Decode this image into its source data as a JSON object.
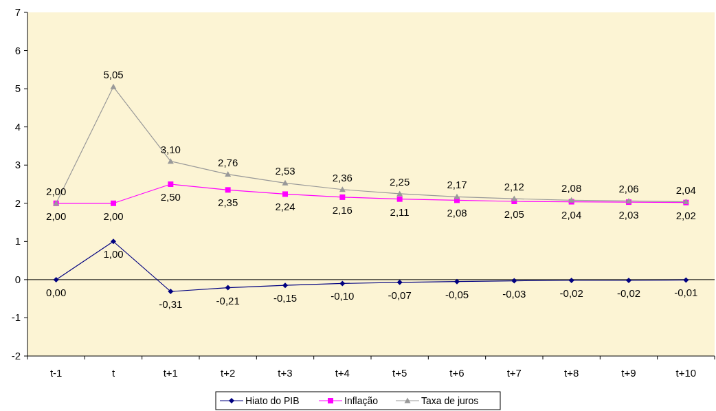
{
  "chart_data": {
    "type": "line",
    "categories": [
      "t-1",
      "t",
      "t+1",
      "t+2",
      "t+3",
      "t+4",
      "t+5",
      "t+6",
      "t+7",
      "t+8",
      "t+9",
      "t+10"
    ],
    "series": [
      {
        "name": "Hiato do PIB",
        "color": "#000080",
        "marker": "diamond",
        "values": [
          0,
          1,
          -0.31,
          -0.21,
          -0.15,
          -0.1,
          -0.07,
          -0.05,
          -0.03,
          -0.02,
          -0.02,
          -0.01
        ],
        "value_labels": [
          "0,00",
          "1,00",
          "-0,31",
          "-0,21",
          "-0,15",
          "-0,10",
          "-0,07",
          "-0,05",
          "-0,03",
          "-0,02",
          "-0,02",
          "-0,01"
        ]
      },
      {
        "name": "Inflação",
        "color": "#ff00ff",
        "marker": "square",
        "values": [
          2,
          2,
          2.5,
          2.35,
          2.24,
          2.16,
          2.11,
          2.08,
          2.05,
          2.04,
          2.03,
          2.02
        ],
        "value_labels": [
          "2,00",
          "2,00",
          "2,50",
          "2,35",
          "2,24",
          "2,16",
          "2,11",
          "2,08",
          "2,05",
          "2,04",
          "2,03",
          "2,02"
        ]
      },
      {
        "name": "Taxa de juros",
        "color": "#999999",
        "marker": "triangle",
        "values": [
          2,
          5.05,
          3.1,
          2.76,
          2.53,
          2.36,
          2.25,
          2.17,
          2.12,
          2.08,
          2.06,
          2.04
        ],
        "value_labels": [
          "2,00",
          "5,05",
          "3,10",
          "2,76",
          "2,53",
          "2,36",
          "2,25",
          "2,17",
          "2,12",
          "2,08",
          "2,06",
          "2,04"
        ]
      }
    ],
    "ylim": [
      -2,
      7
    ],
    "yticks": [
      -2,
      -1,
      0,
      1,
      2,
      3,
      4,
      5,
      6,
      7
    ],
    "legend": "bottom"
  }
}
